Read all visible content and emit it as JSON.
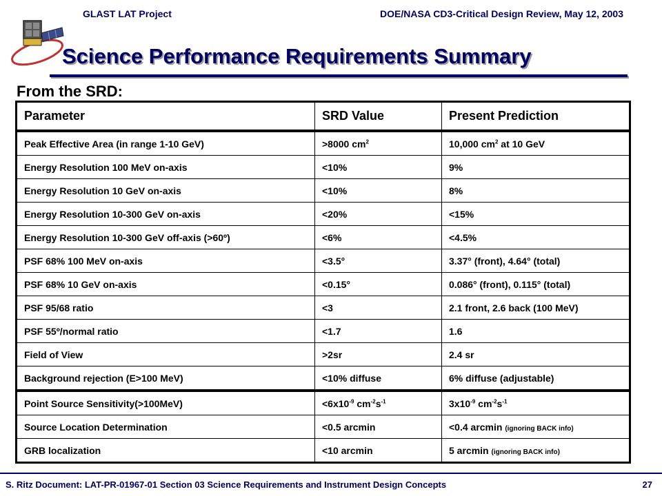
{
  "header": {
    "project": "GLAST LAT Project",
    "review": "DOE/NASA CD3-Critical Design Review, May 12, 2003"
  },
  "title": "Science Performance Requirements Summary",
  "subtitle": "From the SRD:",
  "table": {
    "columns": [
      "Parameter",
      "SRD Value",
      "Present Prediction"
    ],
    "rows": [
      {
        "param": "Peak Effective Area (in range 1-10 GeV)",
        "srd": ">8000 cm",
        "srd_sup": "2",
        "pred": "10,000 cm",
        "pred_sup": "2",
        "pred_tail": " at 10 GeV"
      },
      {
        "param": "Energy Resolution 100 MeV on-axis",
        "srd": "<10%",
        "pred": "9%"
      },
      {
        "param": "Energy Resolution 10 GeV on-axis",
        "srd": "<10%",
        "pred": "8%"
      },
      {
        "param": "Energy Resolution 10-300 GeV on-axis",
        "srd": "<20%",
        "pred": "<15%"
      },
      {
        "param": "Energy Resolution 10-300 GeV off-axis (>60º)",
        "srd": "<6%",
        "pred": "<4.5%"
      },
      {
        "param": "PSF 68% 100 MeV on-axis",
        "srd": "<3.5°",
        "pred": "3.37° (front), 4.64° (total)"
      },
      {
        "param": "PSF 68% 10 GeV on-axis",
        "srd": "<0.15°",
        "pred": "0.086° (front), 0.115° (total)"
      },
      {
        "param": "PSF 95/68 ratio",
        "srd": "<3",
        "pred": "2.1 front, 2.6 back (100 MeV)"
      },
      {
        "param": "PSF 55º/normal ratio",
        "srd": "<1.7",
        "pred": "1.6"
      },
      {
        "param": "Field of View",
        "srd": ">2sr",
        "pred": "2.4 sr"
      },
      {
        "param": "Background rejection (E>100 MeV)",
        "srd": "<10% diffuse",
        "pred": "6% diffuse (adjustable)"
      },
      {
        "param": "Point Source Sensitivity(>100MeV)",
        "srd_a": "<6x10",
        "srd_s1": "-9",
        "srd_b": " cm",
        "srd_s2": "-2",
        "srd_c": "s",
        "srd_s3": "-1",
        "pred_a": "3x10",
        "pred_s1": "-9",
        "pred_b": " cm",
        "pred_s2": "-2",
        "pred_c": "s",
        "pred_s3": "-1"
      },
      {
        "param": "Source Location Determination",
        "srd": "<0.5 arcmin",
        "pred": "<0.4 arcmin ",
        "pred_note": "(ignoring BACK info)"
      },
      {
        "param": "GRB localization",
        "srd": "<10 arcmin",
        "pred": "5 arcmin ",
        "pred_note": "(ignoring BACK info)"
      }
    ]
  },
  "footer": {
    "text": "S. Ritz  Document: LAT-PR-01967-01   Section 03 Science Requirements and Instrument Design Concepts",
    "page": "27"
  },
  "logo_icon": "glast-satellite-icon"
}
